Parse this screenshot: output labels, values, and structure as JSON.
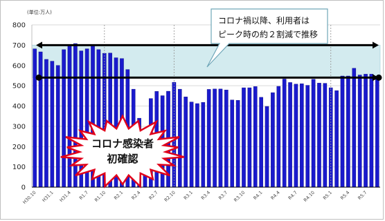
{
  "colors": {
    "bar": "#1a1acd",
    "bar_edge": "#0a0a80",
    "band": "#d3ebef",
    "band_edge": "#9fcfd8",
    "grid": "#d9d9d9",
    "axis": "#000000",
    "arrow": "#000000",
    "dashed_marker": "#999999",
    "callout_fill": "#ffffff",
    "callout_edge": "#6fa6b8",
    "burst_fill": "#ffffff",
    "burst_edge": "#e0001a"
  },
  "chart_data": {
    "type": "bar",
    "unit_label": "(単位:万人)",
    "ylim": [
      0,
      800
    ],
    "yticks": [
      0,
      100,
      200,
      300,
      400,
      500,
      600,
      700,
      800
    ],
    "grid": true,
    "values": [
      682,
      667,
      630,
      621,
      600,
      678,
      698,
      708,
      672,
      682,
      699,
      678,
      660,
      661,
      638,
      634,
      580,
      483,
      340,
      290,
      437,
      472,
      451,
      473,
      517,
      483,
      445,
      420,
      412,
      418,
      482,
      484,
      484,
      479,
      430,
      428,
      490,
      490,
      496,
      443,
      398,
      466,
      497,
      533,
      516,
      508,
      510,
      502,
      532,
      513,
      512,
      490,
      476,
      548,
      548,
      586,
      553,
      557,
      557,
      541
    ],
    "x_tick_labels": [
      {
        "index": 0,
        "label": "H30.10"
      },
      {
        "index": 3,
        "label": "H31.1"
      },
      {
        "index": 6,
        "label": "H31.4"
      },
      {
        "index": 9,
        "label": "R1.7"
      },
      {
        "index": 12,
        "label": "R1.10"
      },
      {
        "index": 15,
        "label": "R2.1"
      },
      {
        "index": 18,
        "label": "R2.4"
      },
      {
        "index": 21,
        "label": "R2.7"
      },
      {
        "index": 24,
        "label": "R2.10"
      },
      {
        "index": 27,
        "label": "R3.1"
      },
      {
        "index": 30,
        "label": "R3.4"
      },
      {
        "index": 33,
        "label": "R3.7"
      },
      {
        "index": 36,
        "label": "R3.10"
      },
      {
        "index": 39,
        "label": "R4.1"
      },
      {
        "index": 42,
        "label": "R4.4"
      },
      {
        "index": 45,
        "label": "R4.7"
      },
      {
        "index": 48,
        "label": "R4.10"
      },
      {
        "index": 51,
        "label": "R5.1"
      },
      {
        "index": 54,
        "label": "R5.4"
      },
      {
        "index": 57,
        "label": "R5.7"
      }
    ],
    "shaded_band": {
      "from": 540,
      "to": 700
    },
    "arrows": [
      {
        "value": 700,
        "style": "double"
      },
      {
        "value": 540,
        "style": "double-dot"
      }
    ],
    "dashed_markers_at_index": [
      12,
      24,
      51
    ],
    "annotations": {
      "callout": [
        "コロナ禍以降、利用者は",
        "ピーク時の約２割減で推移"
      ],
      "burst": [
        "コロナ感染者",
        "初確認"
      ]
    }
  }
}
